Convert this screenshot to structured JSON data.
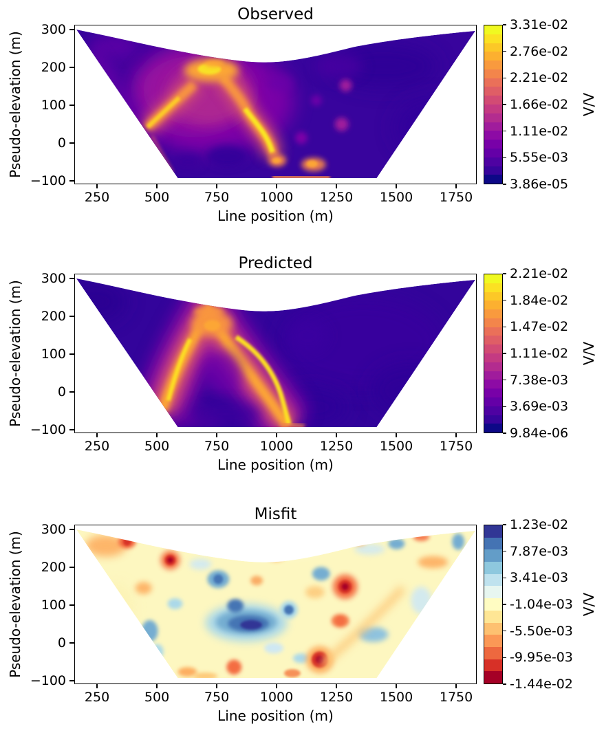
{
  "page": {
    "background": "#ffffff",
    "text_color": "#000000"
  },
  "figure": {
    "xlabel": "Line position (m)",
    "ylabel": "Pseudo-elevation (m)",
    "xticks": [
      {
        "v": 250,
        "label": "250"
      },
      {
        "v": 500,
        "label": "500"
      },
      {
        "v": 750,
        "label": "750"
      },
      {
        "v": 1000,
        "label": "1000"
      },
      {
        "v": 1250,
        "label": "1250"
      },
      {
        "v": 1500,
        "label": "1500"
      },
      {
        "v": 1750,
        "label": "1750"
      }
    ],
    "yticks": [
      {
        "v": 300,
        "label": "300"
      },
      {
        "v": 200,
        "label": "200"
      },
      {
        "v": 100,
        "label": "100"
      },
      {
        "v": 0,
        "label": "0"
      },
      {
        "v": -100,
        "label": "−100"
      }
    ],
    "panels": [
      {
        "title": "Observed",
        "colorbar": {
          "label": "V/V",
          "colormap": "plasma",
          "ticks": [
            "3.31e-02",
            "2.76e-02",
            "2.21e-02",
            "1.66e-02",
            "1.11e-02",
            "5.55e-03",
            "3.86e-05"
          ]
        }
      },
      {
        "title": "Predicted",
        "colorbar": {
          "label": "V/V",
          "colormap": "plasma",
          "ticks": [
            "2.21e-02",
            "1.84e-02",
            "1.47e-02",
            "1.11e-02",
            "7.38e-03",
            "3.69e-03",
            "9.84e-06"
          ]
        }
      },
      {
        "title": "Misfit",
        "colorbar": {
          "label": "V/V",
          "colormap": "rdylbu",
          "ticks": [
            "1.23e-02",
            "7.87e-03",
            "3.41e-03",
            "-1.04e-03",
            "-5.50e-03",
            "-9.95e-03",
            "-1.44e-02"
          ]
        }
      }
    ],
    "colormaps": {
      "plasma": [
        "#f0f921",
        "#fbe123",
        "#fcc827",
        "#fcb030",
        "#f99a3e",
        "#f3854b",
        "#ea7059",
        "#df5e66",
        "#d24b74",
        "#c43a82",
        "#b32c8f",
        "#a01c9c",
        "#8d0ba5",
        "#7801a8",
        "#6400a7",
        "#4e02a2",
        "#37049b",
        "#0d0887"
      ],
      "rdylbu": [
        "#313695",
        "#4473b3",
        "#639dc8",
        "#8ec8de",
        "#bfe2ee",
        "#e7f6f0",
        "#fffcc2",
        "#fee695",
        "#fdc171",
        "#fb9856",
        "#ed683f",
        "#d73027",
        "#a50026"
      ]
    }
  },
  "chart_data": [
    {
      "type": "heatmap",
      "subtype": "filled-contour pseudosection (tricontourf)",
      "title": "Observed",
      "xlabel": "Line position (m)",
      "ylabel": "Pseudo-elevation (m)",
      "xlim": [
        155,
        1840
      ],
      "ylim": [
        -110,
        313
      ],
      "xticks": [
        250,
        500,
        750,
        1000,
        1250,
        1500,
        1750
      ],
      "yticks": [
        300,
        200,
        100,
        0,
        -100
      ],
      "colormap": "plasma",
      "colorbar_label": "V/V",
      "vmin": 3.86e-05,
      "vmax": 0.0331,
      "colorbar_ticks": [
        0.0331,
        0.0276,
        0.0221,
        0.0166,
        0.0111,
        0.00555,
        3.86e-05
      ],
      "legend_position": "right colorbar",
      "grid": false,
      "annotations": "Valley-shaped data region; bright high-value ridge: blob near (720 m, 190 m), limb descending to left boundary near (470 m, 40 m), diagonal ridge from (820 m, 175 m) down to (990 m, -30 m), orange patches along bottom near (1000-1200 m, -80 m); right half low values with faint magenta spots near (1290 m, 155 m) and (1270 m, 50 m)"
    },
    {
      "type": "heatmap",
      "subtype": "filled-contour pseudosection (tricontourf)",
      "title": "Predicted",
      "xlabel": "Line position (m)",
      "ylabel": "Pseudo-elevation (m)",
      "xlim": [
        155,
        1840
      ],
      "ylim": [
        -110,
        313
      ],
      "xticks": [
        250,
        500,
        750,
        1000,
        1250,
        1500,
        1750
      ],
      "yticks": [
        300,
        200,
        100,
        0,
        -100
      ],
      "colormap": "plasma",
      "colorbar_label": "V/V",
      "vmin": 9.84e-06,
      "vmax": 0.0221,
      "colorbar_ticks": [
        0.0221,
        0.0184,
        0.0147,
        0.0111,
        0.00738,
        0.00369,
        9.84e-06
      ],
      "legend_position": "right colorbar",
      "grid": false,
      "annotations": "Smooth inverted-V (lambda) high-value ridge with apex reaching surface near (745 m, 215 m); left limb to boundary near (500 m, 10 m); right limb down to bottom near (1055 m, -95 m); right half uniformly low"
    },
    {
      "type": "heatmap",
      "subtype": "filled-contour pseudosection (tricontourf)",
      "title": "Misfit",
      "xlabel": "Line position (m)",
      "ylabel": "Pseudo-elevation (m)",
      "xlim": [
        155,
        1840
      ],
      "ylim": [
        -110,
        313
      ],
      "xticks": [
        250,
        500,
        750,
        1000,
        1250,
        1500,
        1750
      ],
      "yticks": [
        300,
        200,
        100,
        0,
        -100
      ],
      "colormap": "RdYlBu",
      "colorbar_label": "V/V",
      "vmin": -0.0144,
      "vmax": 0.0123,
      "colorbar_ticks": [
        0.0123,
        0.00787,
        0.00341,
        -0.00104,
        -0.0055,
        -0.00995,
        -0.0144
      ],
      "legend_position": "right colorbar",
      "grid": false,
      "annotations": "Near-zero pale-yellow background; strong positive (blue) anomaly near (875 m, 55 m) elongated; blue patches near (755 m, 170 m), (1035 m, 125 m); strong negative (red) anomalies near (375 m, 270 m), (555 m, 220 m), (1290 m, 150 m), (1180 m, -45 m); scattered orange lows along bottom and right flank"
    }
  ]
}
